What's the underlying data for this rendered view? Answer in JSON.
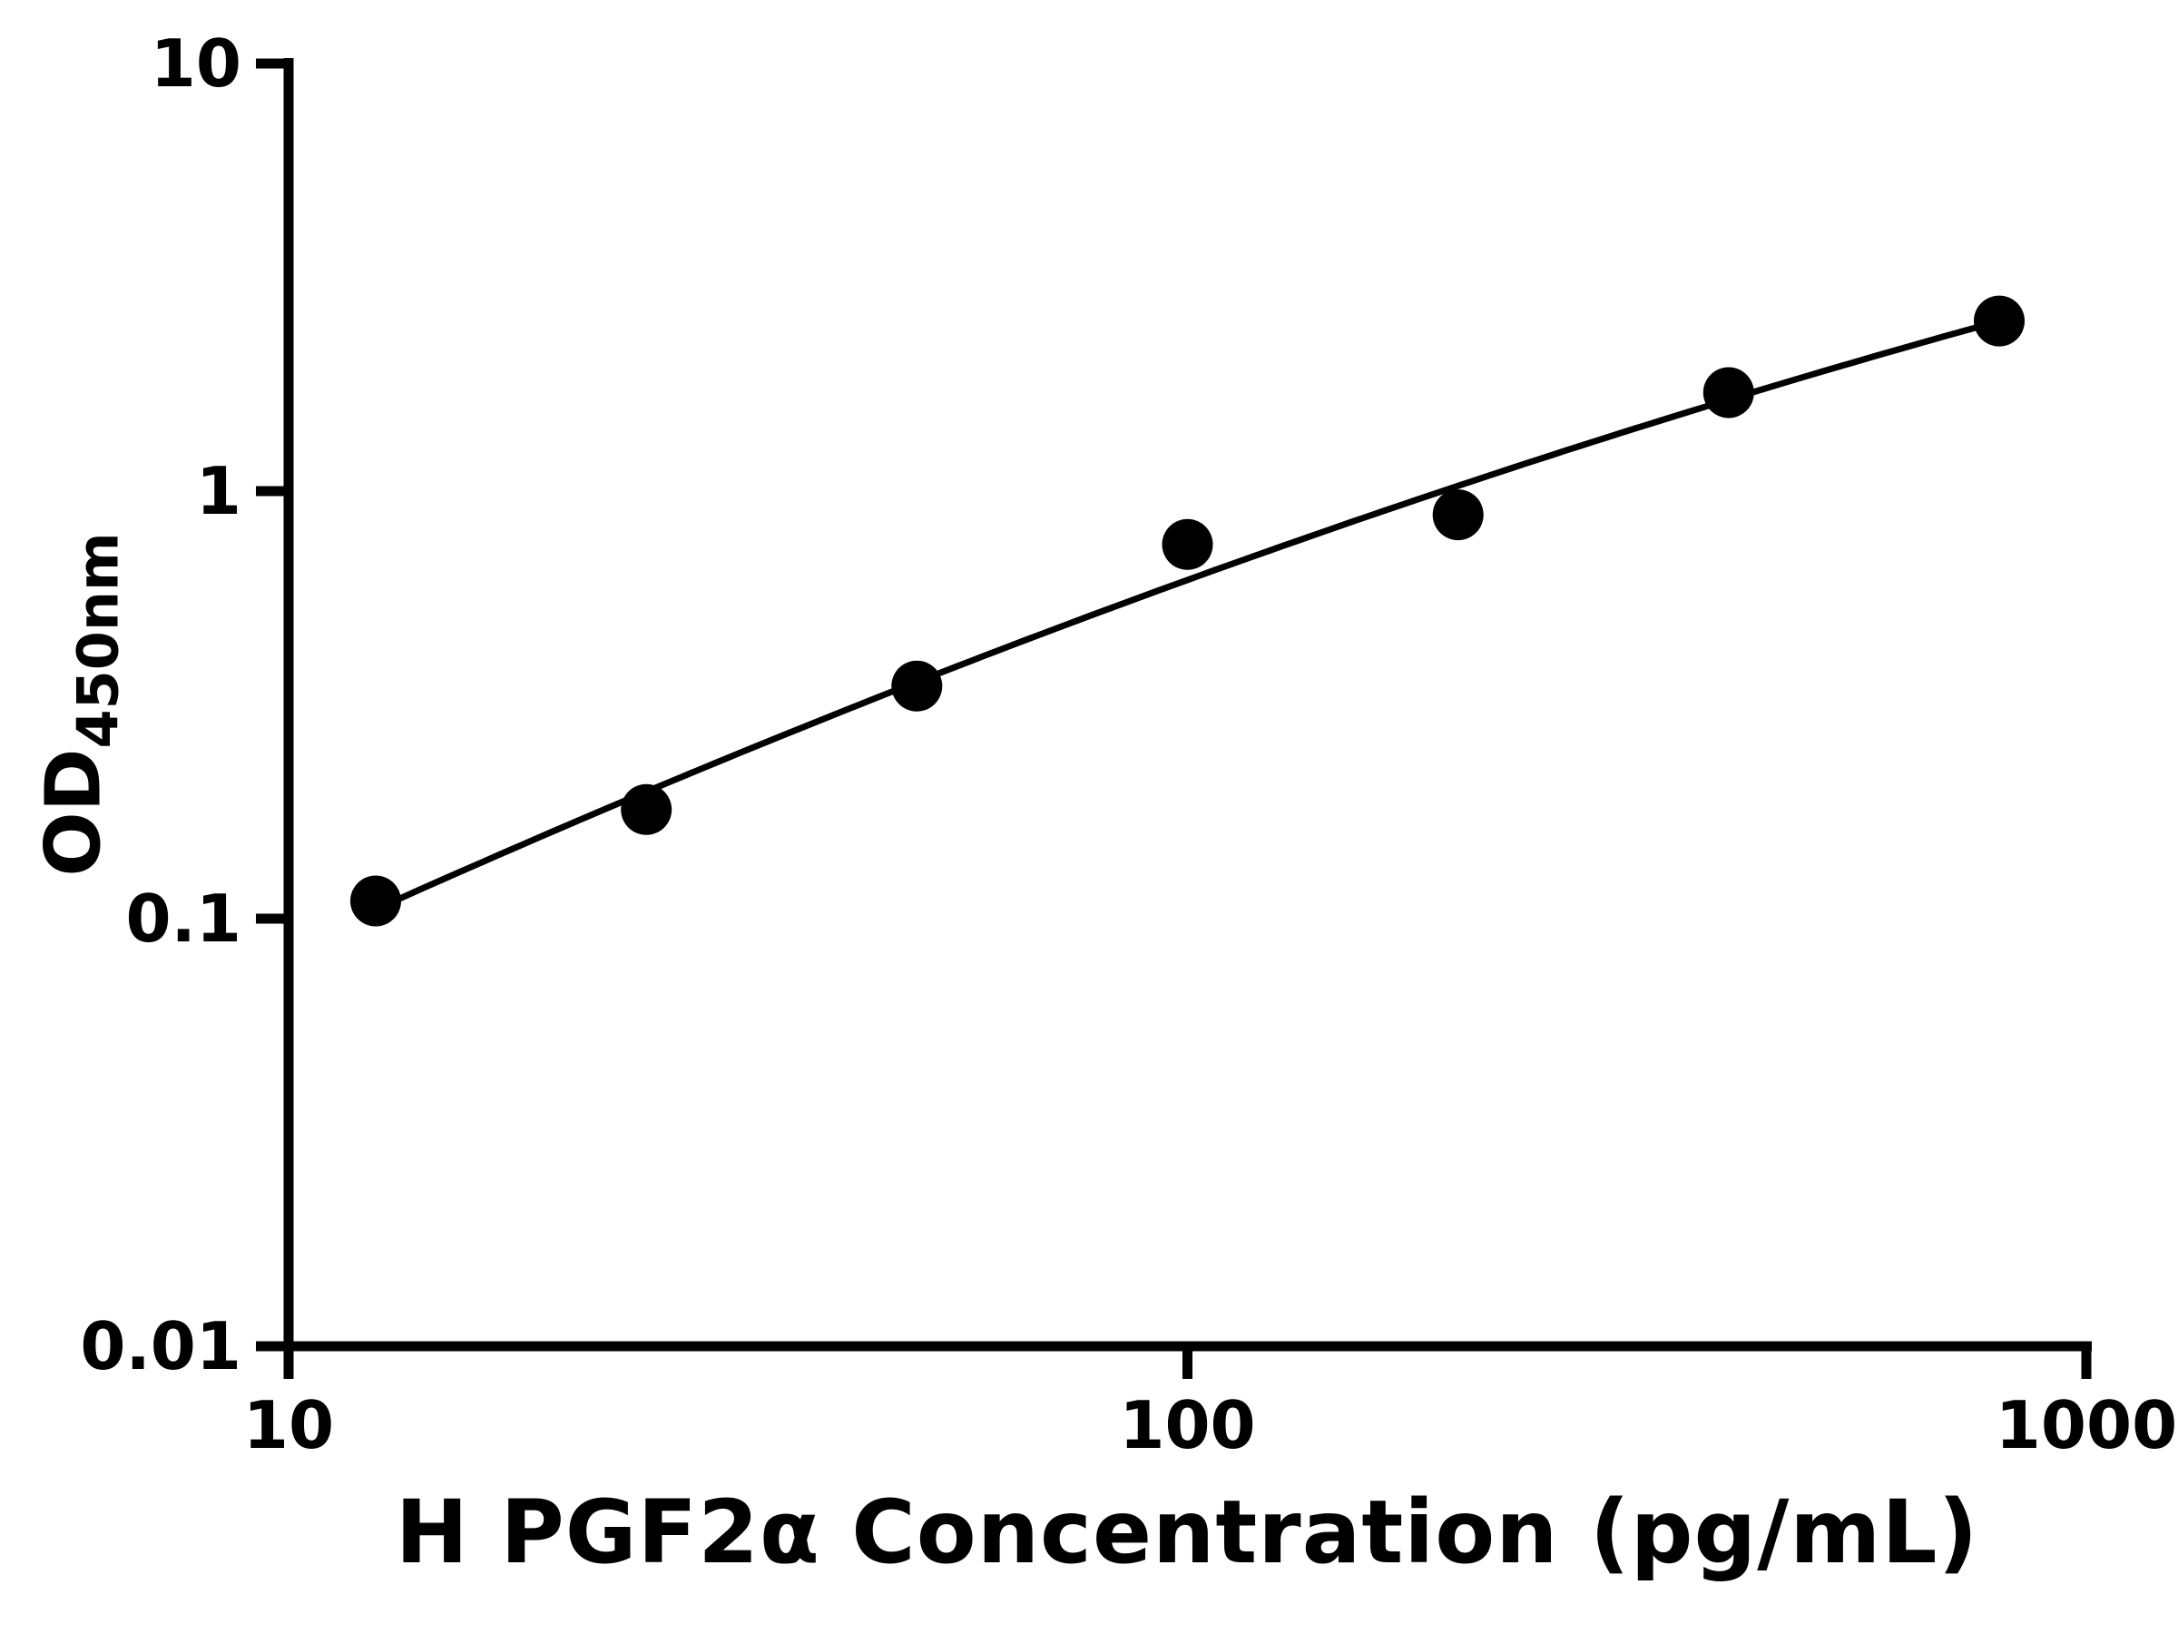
{
  "chart_data": {
    "type": "scatter",
    "x_scale": "log",
    "y_scale": "log",
    "x": [
      12.5,
      25,
      50,
      100,
      200,
      400,
      800
    ],
    "y": [
      0.11,
      0.18,
      0.35,
      0.75,
      0.88,
      1.7,
      2.5
    ],
    "fit_curve": "smooth quadratic fit through points in log-log space",
    "xlim": [
      10,
      1000
    ],
    "ylim": [
      0.01,
      10
    ],
    "x_tick_values": [
      10,
      100,
      1000
    ],
    "x_tick_labels": [
      "10",
      "100",
      "1000"
    ],
    "y_tick_values": [
      0.01,
      0.1,
      1,
      10
    ],
    "y_tick_labels": [
      "0.01",
      "0.1",
      "1",
      "10"
    ],
    "xlabel": "H PGF2α Concentration (pg/mL)",
    "ylabel": {
      "main": "OD",
      "sub": "450nm"
    },
    "grid": false,
    "legend": false,
    "colors": {
      "marker": "#000000",
      "line": "#000000",
      "axis": "#000000",
      "background": "#ffffff"
    }
  }
}
